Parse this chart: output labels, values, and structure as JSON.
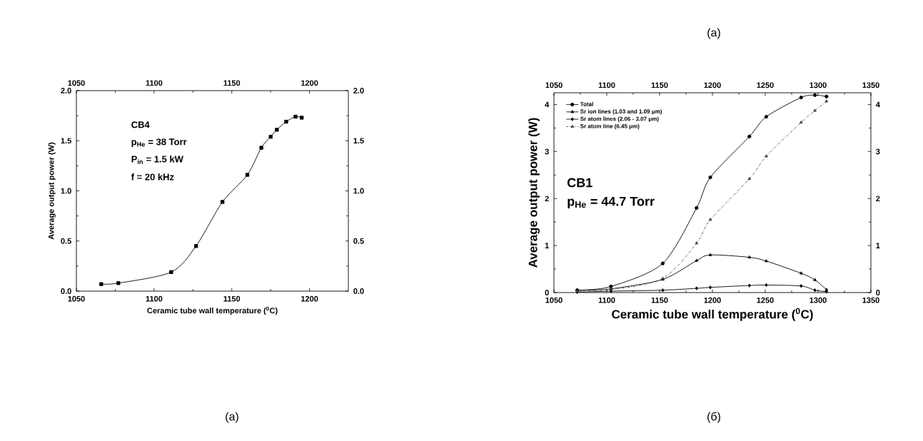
{
  "chart_data": [
    {
      "type": "line",
      "xlabel": "Ceramic tube wall temperature ($^{0}$C)",
      "ylabel": "Average output power (W)",
      "annotations": [
        "CB4",
        "p$_{He}$ = 38 Torr",
        "P$_{in}$ = 1.5 kW",
        "f = 20 kHz",
        "(a)"
      ],
      "xlim": [
        1050,
        1225
      ],
      "xticks": [
        1050,
        1100,
        1150,
        1200
      ],
      "x2lim": [
        1050,
        1225
      ],
      "x2ticks": [
        1050,
        1100,
        1150,
        1200
      ],
      "ylim": [
        0,
        2
      ],
      "yticks": [
        {
          "value": 0,
          "label": "0.0"
        },
        {
          "value": 0.5,
          "label": "0.5"
        },
        {
          "value": 1,
          "label": "1.0"
        },
        {
          "value": 1.5,
          "label": "1.5"
        },
        {
          "value": 2,
          "label": "2.0"
        }
      ],
      "y2lim": [
        0,
        2
      ],
      "y2ticks": [
        {
          "value": 0,
          "label": "0.0"
        },
        {
          "value": 0.5,
          "label": "0.5"
        },
        {
          "value": 1,
          "label": "1.0"
        },
        {
          "value": 1.5,
          "label": "1.5"
        },
        {
          "value": 2,
          "label": "2.0"
        }
      ],
      "marker": "square",
      "line_style": "solid",
      "x": [
        1066,
        1077,
        1111,
        1127,
        1144,
        1160,
        1169,
        1175,
        1179,
        1185,
        1191,
        1195
      ],
      "series": [
        {
          "color": "#000000",
          "values": [
            0.07,
            0.08,
            0.19,
            0.45,
            0.89,
            1.16,
            1.43,
            1.54,
            1.61,
            1.69,
            1.74,
            1.73
          ]
        }
      ]
    },
    {
      "type": "line",
      "xlabel": "Ceramic tube wall temperature ($^{0}$C)",
      "ylabel": "Average output power (W)",
      "annotations": [
        "CB1",
        "p$_{He}$ = 44.7 Torr",
        "(a)",
        "(б)"
      ],
      "xlim": [
        1050,
        1350
      ],
      "xticks": [
        1050,
        1100,
        1150,
        1200,
        1250,
        1300,
        1350
      ],
      "x2lim": [
        1050,
        1350
      ],
      "x2ticks": [
        1050,
        1100,
        1150,
        1200,
        1250,
        1300,
        1350
      ],
      "ylim": [
        0,
        4.25
      ],
      "yticks": [
        0,
        1,
        2,
        3,
        4
      ],
      "y2lim": [
        0,
        4.25
      ],
      "y2ticks": [
        0,
        1,
        2,
        3,
        4
      ],
      "legend": "top left",
      "x": [
        1072,
        1104,
        1153,
        1185,
        1198,
        1235,
        1251,
        1284,
        1297,
        1308
      ],
      "series": [
        {
          "name": "Total",
          "color": "#000000",
          "marker": "circle",
          "line_style": "solid",
          "values": [
            0.05,
            0.13,
            0.62,
            1.8,
            2.45,
            3.32,
            3.74,
            4.15,
            4.2,
            4.17
          ]
        },
        {
          "name": "Sr ion lines (1.03 and 1.09 μm)",
          "color": "#000000",
          "marker": "triangle",
          "line_style": "solid",
          "values": [
            0.05,
            0.08,
            0.28,
            0.68,
            0.8,
            0.75,
            0.67,
            0.41,
            0.27,
            0.06
          ]
        },
        {
          "name": "Sr atom lines (2.06 - 3.07 μm)",
          "color": "#000000",
          "marker": "diamond",
          "line_style": "solid",
          "values": [
            0.01,
            0.03,
            0.05,
            0.09,
            0.11,
            0.15,
            0.16,
            0.14,
            0.05,
            0.02
          ]
        },
        {
          "name": "Sr atom line (6.45 μm)",
          "color": "#444444",
          "marker": "triangle",
          "line_style": "dashed",
          "values": [
            0.03,
            0.06,
            0.3,
            1.05,
            1.55,
            2.42,
            2.9,
            3.62,
            3.87,
            4.07
          ]
        }
      ]
    }
  ]
}
